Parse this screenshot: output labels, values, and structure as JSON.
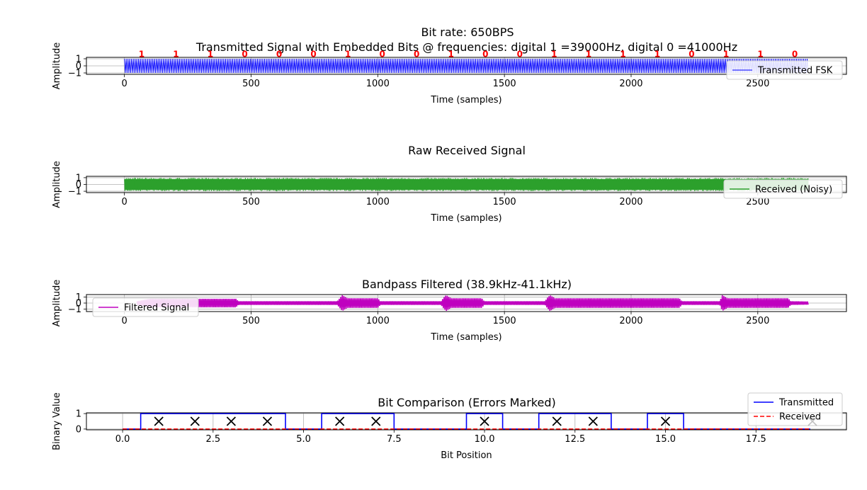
{
  "figure": {
    "suptitle": "Bit rate: 650BPS"
  },
  "colors": {
    "transmitted": "#0000ff",
    "received_noisy": "#2ca02c",
    "filtered": "#bf00bf",
    "bit_label": "#ff0000",
    "received_bits": "#ff0000",
    "error_marker": "#000000",
    "grid": "#b0b0b0"
  },
  "chart_data": [
    {
      "type": "line",
      "title": "Transmitted Signal with Embedded Bits @ frequencies: digital 1 =39000Hz, digital 0 =41000Hz",
      "xlabel": "Time (samples)",
      "ylabel": "Amplitude",
      "xlim": [
        -150,
        2850
      ],
      "ylim": [
        -1.2,
        1.2
      ],
      "xticks": [
        0,
        500,
        1000,
        1500,
        2000,
        2500
      ],
      "xtick_labels": [
        "0",
        "500",
        "1000",
        "1500",
        "2000",
        "2500"
      ],
      "yticks": [
        -1,
        0,
        1
      ],
      "ytick_labels": [
        "−1",
        "0",
        "1"
      ],
      "grid": true,
      "legend_position": "lower-right",
      "series": [
        {
          "name": "Transmitted FSK",
          "color": "#0000ff",
          "style": "solid",
          "signal": "fsk",
          "x_range": [
            0,
            2700
          ],
          "amplitude": 1.0
        }
      ],
      "bit_labels": {
        "bits": [
          "1",
          "1",
          "1",
          "0",
          "0",
          "0",
          "1",
          "0",
          "0",
          "1",
          "0",
          "0",
          "1",
          "1",
          "1",
          "1",
          "0",
          "1",
          "1",
          "0"
        ],
        "samples_per_bit": 135.7,
        "color": "#ff0000"
      }
    },
    {
      "type": "line",
      "title": "Raw Received Signal",
      "xlabel": "Time (samples)",
      "ylabel": "Amplitude",
      "xlim": [
        -150,
        2850
      ],
      "ylim": [
        -1.2,
        1.2
      ],
      "xticks": [
        0,
        500,
        1000,
        1500,
        2000,
        2500
      ],
      "xtick_labels": [
        "0",
        "500",
        "1000",
        "1500",
        "2000",
        "2500"
      ],
      "yticks": [
        -1,
        0,
        1
      ],
      "ytick_labels": [
        "−1",
        "0",
        "1"
      ],
      "grid": true,
      "legend_position": "lower-right",
      "series": [
        {
          "name": "Received (Noisy)",
          "color": "#2ca02c",
          "style": "solid",
          "signal": "noisy",
          "x_range": [
            0,
            2700
          ],
          "amplitude": 1.0
        }
      ]
    },
    {
      "type": "line",
      "title": "Bandpass Filtered (38.9kHz-41.1kHz)",
      "xlabel": "Time (samples)",
      "ylabel": "Amplitude",
      "xlim": [
        -150,
        2850
      ],
      "ylim": [
        -1.4,
        1.4
      ],
      "xticks": [
        0,
        500,
        1000,
        1500,
        2000,
        2500
      ],
      "xtick_labels": [
        "0",
        "500",
        "1000",
        "1500",
        "2000",
        "2500"
      ],
      "yticks": [
        -1,
        0,
        1
      ],
      "ytick_labels": [
        "−1",
        "0",
        "1"
      ],
      "grid": true,
      "legend_position": "lower-left",
      "series": [
        {
          "name": "Filtered Signal",
          "color": "#bf00bf",
          "style": "solid",
          "signal": "envelope",
          "x_range": [
            50,
            2700
          ],
          "envelope": [
            [
              50,
              0.3
            ],
            [
              100,
              0.7
            ],
            [
              440,
              0.7
            ],
            [
              450,
              0.3
            ],
            [
              840,
              0.3
            ],
            [
              850,
              0.8
            ],
            [
              860,
              1.3
            ],
            [
              880,
              0.8
            ],
            [
              1000,
              0.8
            ],
            [
              1010,
              0.3
            ],
            [
              1250,
              0.3
            ],
            [
              1260,
              0.9
            ],
            [
              1270,
              1.3
            ],
            [
              1290,
              0.8
            ],
            [
              1410,
              0.8
            ],
            [
              1420,
              0.3
            ],
            [
              1660,
              0.3
            ],
            [
              1670,
              0.9
            ],
            [
              1680,
              1.3
            ],
            [
              1700,
              0.8
            ],
            [
              2190,
              0.8
            ],
            [
              2200,
              0.3
            ],
            [
              2350,
              0.3
            ],
            [
              2360,
              1.3
            ],
            [
              2380,
              0.8
            ],
            [
              2620,
              0.8
            ],
            [
              2630,
              0.3
            ],
            [
              2700,
              0.25
            ]
          ]
        }
      ]
    },
    {
      "type": "line",
      "title": "Bit Comparison (Errors Marked)",
      "xlabel": "Bit Position",
      "ylabel": "Binary Value",
      "xlim": [
        -1.0,
        20.0
      ],
      "ylim": [
        -0.05,
        1.05
      ],
      "xticks": [
        0.0,
        2.5,
        5.0,
        7.5,
        10.0,
        12.5,
        15.0,
        17.5
      ],
      "xtick_labels": [
        "0.0",
        "2.5",
        "5.0",
        "7.5",
        "10.0",
        "12.5",
        "15.0",
        "17.5"
      ],
      "yticks": [
        0,
        1
      ],
      "ytick_labels": [
        "0",
        "1"
      ],
      "grid": true,
      "legend_position": "upper-right",
      "series": [
        {
          "name": "Transmitted",
          "color": "#0000ff",
          "style": "step",
          "values": [
            0,
            1,
            1,
            1,
            1,
            0,
            1,
            1,
            0,
            0,
            1,
            0,
            1,
            1,
            0,
            1,
            0,
            0,
            0,
            0
          ]
        },
        {
          "name": "Received",
          "color": "#ff0000",
          "style": "dashed-step",
          "values": [
            0,
            0,
            0,
            0,
            0,
            0,
            0,
            0,
            0,
            0,
            0,
            0,
            0,
            0,
            0,
            0,
            0,
            0,
            0,
            0
          ]
        }
      ],
      "error_markers": {
        "x": [
          1,
          2,
          3,
          4,
          6,
          7,
          10,
          12,
          13,
          15
        ],
        "y": 0.5,
        "color": "#000000"
      }
    }
  ]
}
